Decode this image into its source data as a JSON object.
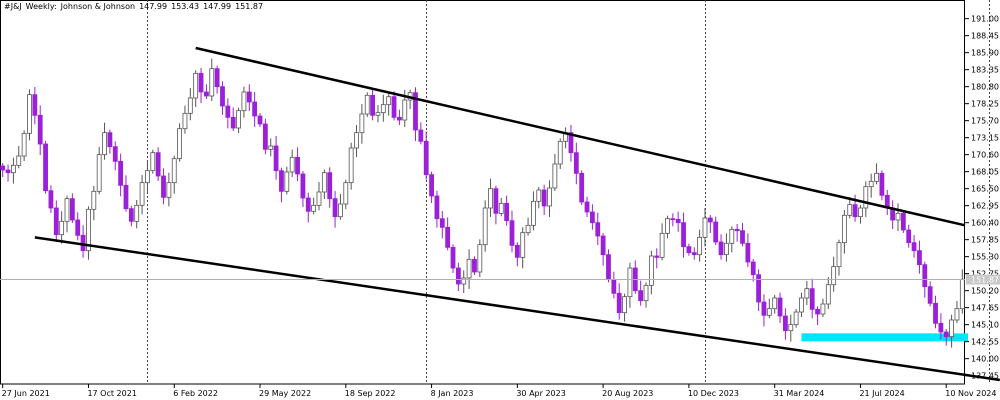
{
  "header": {
    "symbol": "#J&J",
    "timeframe": "Weekly:",
    "name": "Johnson & Johnson",
    "open": "147.99",
    "high": "153.43",
    "low": "147.99",
    "close": "151.87"
  },
  "colors": {
    "bull": "#ffffff",
    "bull_border": "#555555",
    "bear": "#9b20d8",
    "support": "#00e5ff",
    "channel": "#000000",
    "price_line": "#b0b0b0",
    "price_label_bg": "#c8c8c8"
  },
  "chart_data": {
    "type": "candlestick",
    "title": "",
    "xlabel": "",
    "ylabel": "",
    "ylim": [
      136.2,
      192.3
    ],
    "y_ticks": [
      "191.00",
      "188.45",
      "185.90",
      "183.35",
      "180.80",
      "178.25",
      "175.70",
      "173.15",
      "170.60",
      "168.05",
      "165.50",
      "162.95",
      "160.40",
      "157.85",
      "155.30",
      "152.75",
      "150.20",
      "147.65",
      "145.10",
      "142.55",
      "140.00",
      "137.45"
    ],
    "x_ticks": [
      "27 Jun 2021",
      "17 Oct 2021",
      "6 Feb 2022",
      "29 May 2022",
      "18 Sep 2022",
      "8 Jan 2023",
      "30 Apr 2023",
      "20 Aug 2023",
      "10 Dec 2023",
      "31 Mar 2024",
      "21 Jul 2024",
      "10 Nov 2024"
    ],
    "x_tick_index": [
      0,
      16,
      32,
      48,
      64,
      80,
      96,
      112,
      128,
      144,
      160,
      176
    ],
    "separator_index": [
      27,
      79,
      131,
      184
    ],
    "current_price": "151.87",
    "closes": [
      168.3,
      167.9,
      169.0,
      170.4,
      173.8,
      179.6,
      176.5,
      172.2,
      165.2,
      162.6,
      158.6,
      160.6,
      164.0,
      160.8,
      158.5,
      156.2,
      162.4,
      165.1,
      170.6,
      173.9,
      171.8,
      169.6,
      166.0,
      162.5,
      160.6,
      163.0,
      166.4,
      168.2,
      170.9,
      167.4,
      164.2,
      166.4,
      170.0,
      174.5,
      176.8,
      179.1,
      182.8,
      180.0,
      179.4,
      183.5,
      180.8,
      177.9,
      176.2,
      174.6,
      177.2,
      180.0,
      178.5,
      176.4,
      175.2,
      171.4,
      171.9,
      168.2,
      165.1,
      168.0,
      170.2,
      167.7,
      164.1,
      162.1,
      163.0,
      165.0,
      167.9,
      164.0,
      161.3,
      163.2,
      166.4,
      171.6,
      173.9,
      176.7,
      179.5,
      176.5,
      176.9,
      178.1,
      179.3,
      176.2,
      175.8,
      178.8,
      179.9,
      174.3,
      172.6,
      167.6,
      164.4,
      161.0,
      159.7,
      156.7,
      153.6,
      151.2,
      152.1,
      154.9,
      153.0,
      157.1,
      162.6,
      165.5,
      161.8,
      163.3,
      160.7,
      157.0,
      155.2,
      158.9,
      160.0,
      163.6,
      165.3,
      162.9,
      165.6,
      169.2,
      172.6,
      173.9,
      170.9,
      167.8,
      163.5,
      162.0,
      160.4,
      158.4,
      155.6,
      151.9,
      149.8,
      146.9,
      149.3,
      153.6,
      150.2,
      148.7,
      151.0,
      155.4,
      155.2,
      158.8,
      161.0,
      160.9,
      160.4,
      156.8,
      155.9,
      155.6,
      158.2,
      161.1,
      160.5,
      157.5,
      155.6,
      157.3,
      159.4,
      159.2,
      157.3,
      154.5,
      152.6,
      148.5,
      146.5,
      147.5,
      149.1,
      146.4,
      144.2,
      145.1,
      147.0,
      149.1,
      150.5,
      147.4,
      146.7,
      148.2,
      151.1,
      153.8,
      157.4,
      161.5,
      163.1,
      161.3,
      162.6,
      165.8,
      166.6,
      167.8,
      164.5,
      162.6,
      160.8,
      161.8,
      159.3,
      157.4,
      156.2,
      154.1,
      150.8,
      148.3,
      145.3,
      144.0,
      143.3,
      145.8,
      147.5,
      151.9
    ]
  }
}
